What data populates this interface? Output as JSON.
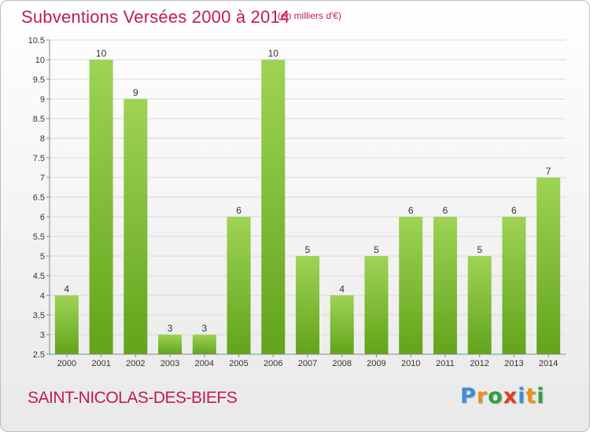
{
  "header": {
    "title": "Subventions Versées 2000 à 2014",
    "subtitle": "(en milliers d'€)"
  },
  "footer": {
    "commune": "SAINT-NICOLAS-DES-BIEFS",
    "logo_letters": [
      {
        "ch": "P",
        "color": "#3a8fd6"
      },
      {
        "ch": "r",
        "color": "#e8941a"
      },
      {
        "ch": "o",
        "color": "#2e9e3e"
      },
      {
        "ch": "x",
        "color": "#e23a2a"
      },
      {
        "ch": "i",
        "color": "#3a8fd6"
      },
      {
        "ch": "t",
        "color": "#e8941a"
      },
      {
        "ch": "i",
        "color": "#2e9e3e"
      }
    ]
  },
  "colors": {
    "bar_top": "#9fd356",
    "bar_bottom": "#62a41b",
    "grid": "#d9d9d9",
    "axis": "#888888",
    "title": "#c2185b"
  },
  "chart_data": {
    "type": "bar",
    "categories": [
      "2000",
      "2001",
      "2002",
      "2003",
      "2004",
      "2005",
      "2006",
      "2007",
      "2008",
      "2009",
      "2010",
      "2011",
      "2012",
      "2013",
      "2014"
    ],
    "values": [
      4,
      10,
      9,
      3,
      3,
      6,
      10,
      5,
      4,
      5,
      6,
      6,
      5,
      6,
      7
    ],
    "value_labels": [
      "4",
      "10",
      "9",
      "3",
      "3",
      "6",
      "10",
      "5",
      "4",
      "5",
      "6",
      "6",
      "5",
      "6",
      "7"
    ],
    "yticks": [
      "2.5",
      "3",
      "3.5",
      "4",
      "4.5",
      "5",
      "5.5",
      "6",
      "6.5",
      "7",
      "7.5",
      "8",
      "8.5",
      "9",
      "9.5",
      "10",
      "10.5"
    ],
    "ylim": [
      2.5,
      10.5
    ],
    "grid": true,
    "title": "Subventions Versées 2000 à 2014",
    "ylabel": "",
    "xlabel": ""
  }
}
